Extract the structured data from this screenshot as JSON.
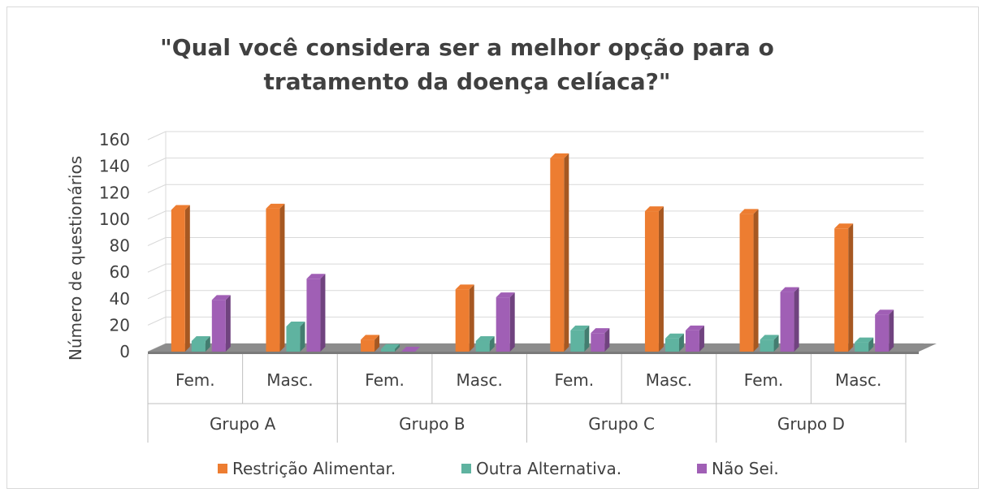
{
  "chart_data": {
    "type": "bar",
    "title": "\"Qual você considera ser a melhor opção para o tratamento da doença celíaca?\"",
    "title_lines": [
      "\"Qual você considera ser a melhor opção para o",
      "tratamento da doença celíaca?\""
    ],
    "ylabel": "Número de questionários",
    "ylim": [
      0,
      160
    ],
    "yticks": [
      0,
      20,
      40,
      60,
      80,
      100,
      120,
      140,
      160
    ],
    "grid": true,
    "legend_position": "bottom",
    "groups": [
      "Grupo A",
      "Grupo B",
      "Grupo C",
      "Grupo D"
    ],
    "subcategories": [
      "Fem.",
      "Masc.",
      "Fem.",
      "Masc.",
      "Fem.",
      "Masc.",
      "Fem.",
      "Masc."
    ],
    "series": [
      {
        "name": "Restrição Alimentar.",
        "color": "#ed7d31",
        "values": [
          107,
          108,
          9,
          47,
          146,
          106,
          104,
          93
        ]
      },
      {
        "name": "Outra Alternativa.",
        "color": "#5fb3a0",
        "values": [
          8,
          19,
          2,
          8,
          16,
          10,
          9,
          7
        ]
      },
      {
        "name": "Não Sei.",
        "color": "#a05fb5",
        "values": [
          39,
          55,
          0,
          41,
          14,
          16,
          45,
          28
        ]
      }
    ],
    "legend_labels": [
      "Restrição Alimentar.",
      "Outra Alternativa.",
      "Não Sei."
    ]
  }
}
